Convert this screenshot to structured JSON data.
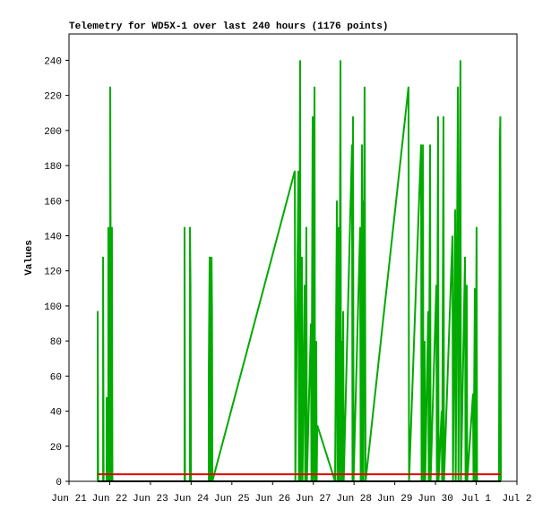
{
  "chart_data": {
    "type": "line",
    "title": "Telemetry for WD5X-1 over last 240 hours (1176 points)",
    "y_label": "Values",
    "xlim": [
      0,
      264
    ],
    "xticks": [
      {
        "value": 0,
        "label": "Jun 21"
      },
      {
        "value": 24,
        "label": "Jun 22"
      },
      {
        "value": 48,
        "label": "Jun 23"
      },
      {
        "value": 72,
        "label": "Jun 24"
      },
      {
        "value": 96,
        "label": "Jun 25"
      },
      {
        "value": 120,
        "label": "Jun 26"
      },
      {
        "value": 144,
        "label": "Jun 27"
      },
      {
        "value": 168,
        "label": "Jun 28"
      },
      {
        "value": 192,
        "label": "Jun 29"
      },
      {
        "value": 216,
        "label": "Jun 30"
      },
      {
        "value": 240,
        "label": "Jul 1"
      },
      {
        "value": 264,
        "label": "Jul 2"
      }
    ],
    "ylim": [
      0,
      255
    ],
    "yticks": [
      0,
      20,
      40,
      60,
      80,
      100,
      120,
      140,
      160,
      180,
      200,
      220,
      240
    ],
    "series": [
      {
        "color": "#00aa00",
        "x": [
          16.9,
          16.9,
          17.2,
          20.1,
          20.1,
          20.4,
          22.2,
          22.2,
          22.5,
          23.2,
          23.2,
          23.5,
          24.3,
          24.3,
          24.6,
          24.9,
          25.3,
          25.3,
          25.6,
          68.1,
          68.1,
          68.4,
          71.3,
          71.3,
          71.6,
          71.9,
          82.4,
          82.4,
          82.9,
          83.2,
          84.0,
          84.0,
          84.3,
          84.5,
          133.1,
          133.4,
          135.2,
          135.5,
          136.2,
          136.5,
          137.3,
          137.6,
          138.9,
          139.2,
          139.9,
          140.2,
          142.6,
          142.9,
          143.6,
          143.9,
          144.7,
          145.0,
          145.7,
          146.0,
          146.3,
          156.8,
          157.9,
          158.2,
          158.9,
          159.2,
          160.0,
          160.3,
          160.5,
          160.8,
          161.6,
          161.9,
          166.8,
          167.1,
          167.4,
          167.7,
          171.6,
          171.9,
          172.7,
          173.0,
          173.2,
          173.5,
          174.2,
          174.8,
          200.1,
          200.4,
          207.5,
          207.8,
          208.6,
          208.9,
          209.6,
          209.9,
          211.7,
          212.0,
          212.8,
          213.1,
          216.5,
          216.8,
          217.5,
          217.8,
          219.6,
          219.9,
          220.7,
          221.0,
          226.0,
          226.3,
          227.6,
          227.9,
          229.2,
          229.5,
          230.7,
          231.0,
          233.4,
          233.7,
          234.4,
          234.7,
          238.1,
          238.4,
          239.2,
          239.5,
          240.2,
          240.5,
          253.4,
          253.9,
          254.2,
          254.5
        ],
        "values": [
          0,
          97,
          0,
          0,
          128,
          0,
          0,
          48,
          0,
          0,
          145,
          0,
          0,
          225,
          112,
          0,
          0,
          145,
          0,
          0,
          145,
          0,
          0,
          145,
          112,
          0,
          0,
          64,
          128,
          0,
          0,
          128,
          96,
          0,
          177,
          0,
          177,
          0,
          240,
          0,
          128,
          0,
          112,
          0,
          145,
          0,
          90,
          0,
          208,
          0,
          225,
          0,
          80,
          0,
          32,
          0,
          160,
          0,
          145,
          0,
          240,
          0,
          80,
          0,
          97,
          0,
          192,
          0,
          208,
          0,
          145,
          0,
          192,
          0,
          160,
          0,
          225,
          0,
          225,
          0,
          192,
          0,
          192,
          0,
          80,
          0,
          97,
          0,
          192,
          0,
          112,
          0,
          208,
          0,
          40,
          0,
          208,
          0,
          140,
          0,
          155,
          0,
          225,
          0,
          240,
          0,
          128,
          0,
          112,
          0,
          50,
          0,
          110,
          0,
          145,
          0,
          0,
          192,
          208,
          0
        ]
      },
      {
        "color": "#dd0000",
        "x": [
          16.9,
          254.5
        ],
        "values": [
          4,
          4
        ]
      },
      {
        "color": "#000000",
        "x": [
          16.9,
          254.5
        ],
        "values": [
          0,
          0
        ]
      }
    ]
  }
}
